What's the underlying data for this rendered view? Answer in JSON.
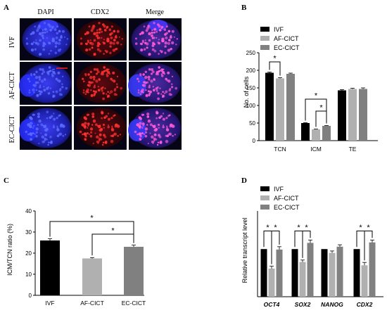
{
  "panels": {
    "a": {
      "letter": "A",
      "columns": [
        "DAPI",
        "CDX2",
        "Merge"
      ],
      "rows": [
        "IVF",
        "AF-CICT",
        "EC-CICT"
      ]
    },
    "b": {
      "letter": "B"
    },
    "c": {
      "letter": "C"
    },
    "d": {
      "letter": "D"
    }
  },
  "colors": {
    "ivf": "#000000",
    "af": "#b0b0b0",
    "ec": "#808080",
    "dapi": "#2a2dd8",
    "cdx2": "#d11c1c",
    "merge": "#c04ad0",
    "background": "#050515"
  },
  "chart_data": [
    {
      "id": "B",
      "type": "bar",
      "ylabel": "No. of cells",
      "ylim": [
        0,
        250
      ],
      "yticks": [
        0,
        50,
        100,
        150,
        200,
        250
      ],
      "categories": [
        "TCN",
        "ICM",
        "TE"
      ],
      "legend_position": "top-left",
      "series": [
        {
          "name": "IVF",
          "values": [
            193,
            50,
            143
          ],
          "errors": [
            2,
            1,
            2
          ]
        },
        {
          "name": "AF-CICT",
          "values": [
            177,
            32,
            147
          ],
          "errors": [
            2,
            1,
            2
          ]
        },
        {
          "name": "EC-CICT",
          "values": [
            190,
            42,
            147
          ],
          "errors": [
            2,
            1,
            3
          ]
        }
      ],
      "significance": [
        {
          "category": "TCN",
          "from": 0,
          "to": 1,
          "label": "*"
        },
        {
          "category": "ICM",
          "from": 0,
          "to": 2,
          "label": "*"
        },
        {
          "category": "ICM",
          "from": 1,
          "to": 2,
          "label": "*"
        }
      ]
    },
    {
      "id": "C",
      "type": "bar",
      "ylabel": "ICM/TCN ratio (%)",
      "ylim": [
        0,
        40
      ],
      "yticks": [
        0,
        10,
        20,
        30,
        40
      ],
      "categories": [
        "IVF",
        "AF-CICT",
        "EC-CICT"
      ],
      "values": [
        26,
        17.5,
        23
      ],
      "errors": [
        0.8,
        0.4,
        0.8
      ],
      "significance": [
        {
          "from": 0,
          "to": 2,
          "label": "*",
          "level": 35
        },
        {
          "from": 1,
          "to": 2,
          "label": "*",
          "level": 29
        }
      ]
    },
    {
      "id": "D",
      "type": "bar",
      "ylabel": "Relative transcript level",
      "ylim": [
        0,
        1.8
      ],
      "categories": [
        "OCT4",
        "SOX2",
        "NANOG",
        "CDX2"
      ],
      "legend_position": "top-left",
      "series": [
        {
          "name": "IVF",
          "values": [
            1.0,
            1.0,
            1.0,
            1.0
          ],
          "errors": [
            0.0,
            0.0,
            0.0,
            0.0
          ]
        },
        {
          "name": "AF-CICT",
          "values": [
            0.59,
            0.73,
            0.92,
            0.66
          ],
          "errors": [
            0.05,
            0.04,
            0.04,
            0.06
          ]
        },
        {
          "name": "EC-CICT",
          "values": [
            0.99,
            1.13,
            1.05,
            1.14
          ],
          "errors": [
            0.06,
            0.06,
            0.04,
            0.05
          ]
        }
      ],
      "significance": [
        {
          "category": "OCT4",
          "from": 0,
          "to": 1,
          "label": "*"
        },
        {
          "category": "OCT4",
          "from": 1,
          "to": 2,
          "label": "*"
        },
        {
          "category": "SOX2",
          "from": 0,
          "to": 1,
          "label": "*"
        },
        {
          "category": "SOX2",
          "from": 1,
          "to": 2,
          "label": "*"
        },
        {
          "category": "CDX2",
          "from": 0,
          "to": 1,
          "label": "*"
        },
        {
          "category": "CDX2",
          "from": 1,
          "to": 2,
          "label": "*"
        }
      ]
    }
  ]
}
